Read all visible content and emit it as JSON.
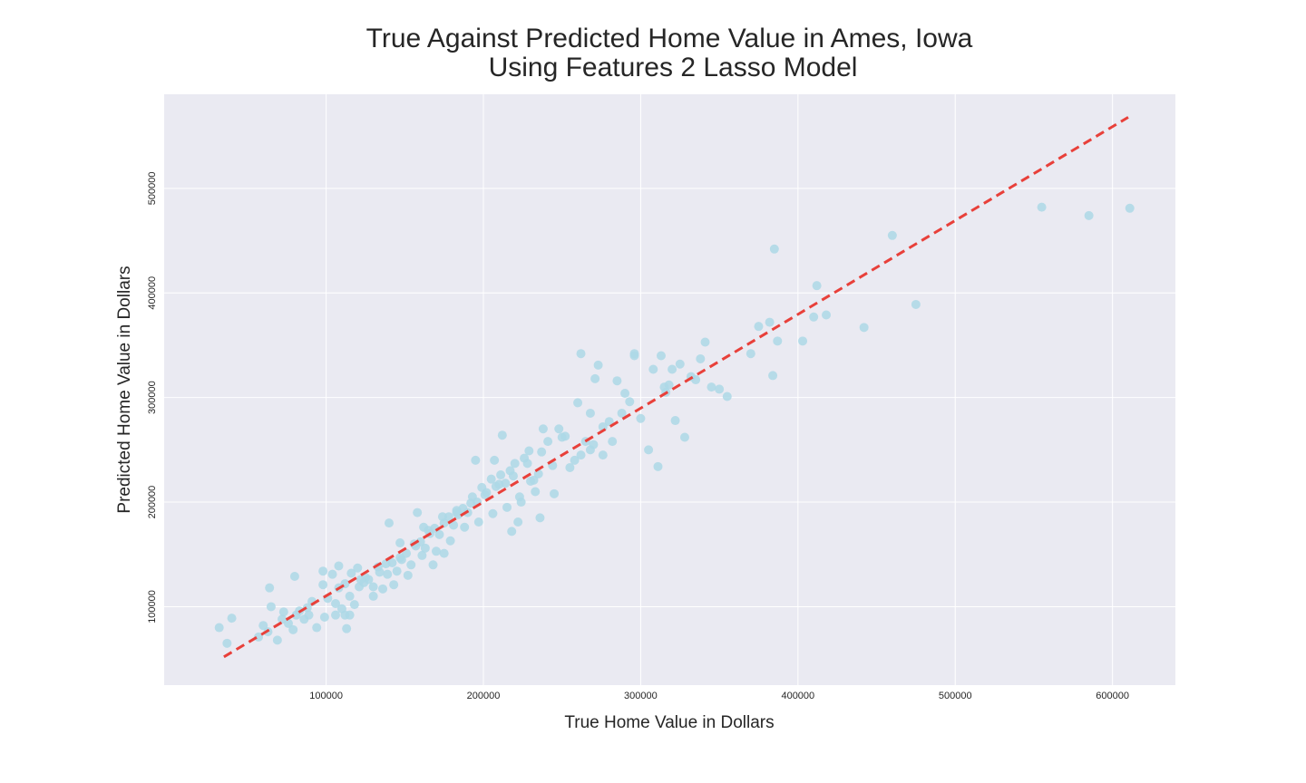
{
  "chart_data": {
    "type": "scatter",
    "title": "True Against Predicted Home Value in Ames, Iowa",
    "subtitle": "Using Features 2 Lasso Model",
    "xlabel": "True Home Value in Dollars",
    "ylabel": "Predicted Home Value in Dollars",
    "xlim": [
      -3000,
      640000
    ],
    "ylim": [
      25000,
      590000
    ],
    "xticks": [
      100000,
      200000,
      300000,
      400000,
      500000,
      600000
    ],
    "yticks": [
      100000,
      200000,
      300000,
      400000,
      500000
    ],
    "grid": true,
    "colors": {
      "background": "#eaeaf2",
      "grid": "#ffffff",
      "points": "#add8e6",
      "line": "#e8403a"
    },
    "reference_line": {
      "style": "dashed",
      "from": [
        35000,
        52000
      ],
      "to": [
        610000,
        568000
      ]
    },
    "x": [
      32000,
      37000,
      40000,
      57000,
      60000,
      63000,
      65000,
      69000,
      72000,
      73000,
      76000,
      79000,
      81000,
      83000,
      86000,
      88000,
      89000,
      91000,
      94000,
      98000,
      99000,
      101000,
      104000,
      106000,
      108000,
      110000,
      112000,
      113000,
      115000,
      118000,
      121000,
      124000,
      127000,
      130000,
      133000,
      136000,
      139000,
      142000,
      145000,
      148000,
      151000,
      154000,
      157000,
      160000,
      163000,
      166000,
      169000,
      172000,
      175000,
      178000,
      181000,
      184000,
      187000,
      190000,
      193000,
      196000,
      199000,
      202000,
      205000,
      208000,
      211000,
      214000,
      217000,
      220000,
      223000,
      226000,
      229000,
      232000,
      235000,
      238000,
      241000,
      244000,
      250000,
      255000,
      258000,
      260000,
      262000,
      265000,
      268000,
      270000,
      273000,
      276000,
      280000,
      285000,
      288000,
      290000,
      293000,
      296000,
      300000,
      305000,
      308000,
      311000,
      313000,
      316000,
      318000,
      320000,
      322000,
      325000,
      328000,
      332000,
      335000,
      338000,
      341000,
      345000,
      350000,
      355000,
      370000,
      375000,
      382000,
      384000,
      385000,
      387000,
      403000,
      410000,
      412000,
      418000,
      442000,
      460000,
      475000,
      555000,
      585000,
      611000,
      108000,
      112000,
      116000,
      120000,
      125000,
      130000,
      134000,
      138000,
      143000,
      147000,
      152000,
      156000,
      161000,
      165000,
      170000,
      174000,
      179000,
      183000,
      188000,
      192000,
      197000,
      201000,
      206000,
      210000,
      215000,
      219000,
      224000,
      228000,
      233000,
      237000,
      64000,
      80000,
      98000,
      106000,
      115000,
      122000,
      140000,
      147000,
      158000,
      162000,
      168000,
      175000,
      183000,
      195000,
      207000,
      212000,
      218000,
      222000,
      230000,
      236000,
      245000,
      248000,
      252000,
      262000,
      268000,
      271000,
      276000,
      282000,
      296000,
      315000
    ],
    "y": [
      80000,
      65000,
      89000,
      71000,
      82000,
      76000,
      100000,
      68000,
      88000,
      95000,
      84000,
      78000,
      92000,
      96000,
      88000,
      99000,
      92000,
      105000,
      80000,
      134000,
      90000,
      108000,
      131000,
      103000,
      118000,
      98000,
      122000,
      79000,
      110000,
      102000,
      119000,
      123000,
      126000,
      110000,
      138000,
      117000,
      131000,
      142000,
      134000,
      145000,
      151000,
      140000,
      158000,
      162000,
      156000,
      170000,
      175000,
      169000,
      180000,
      186000,
      178000,
      188000,
      194000,
      190000,
      205000,
      200000,
      214000,
      209000,
      222000,
      215000,
      226000,
      218000,
      230000,
      237000,
      205000,
      242000,
      249000,
      221000,
      227000,
      270000,
      258000,
      235000,
      262000,
      233000,
      240000,
      295000,
      245000,
      258000,
      285000,
      255000,
      331000,
      272000,
      277000,
      316000,
      285000,
      304000,
      296000,
      340000,
      280000,
      250000,
      327000,
      234000,
      340000,
      305000,
      312000,
      327000,
      278000,
      332000,
      262000,
      320000,
      317000,
      337000,
      353000,
      310000,
      308000,
      301000,
      342000,
      368000,
      372000,
      321000,
      442000,
      354000,
      354000,
      377000,
      407000,
      379000,
      367000,
      455000,
      389000,
      482000,
      474000,
      481000,
      139000,
      92000,
      132000,
      137000,
      128000,
      119000,
      133000,
      141000,
      121000,
      147000,
      130000,
      160000,
      149000,
      173000,
      153000,
      186000,
      163000,
      192000,
      176000,
      199000,
      181000,
      207000,
      189000,
      217000,
      195000,
      225000,
      200000,
      237000,
      210000,
      248000,
      118000,
      129000,
      121000,
      92000,
      92000,
      126000,
      180000,
      161000,
      190000,
      176000,
      140000,
      151000,
      190000,
      240000,
      240000,
      264000,
      172000,
      181000,
      220000,
      185000,
      208000,
      270000,
      263000,
      342000,
      250000,
      318000,
      245000,
      258000,
      342000,
      310000
    ]
  }
}
